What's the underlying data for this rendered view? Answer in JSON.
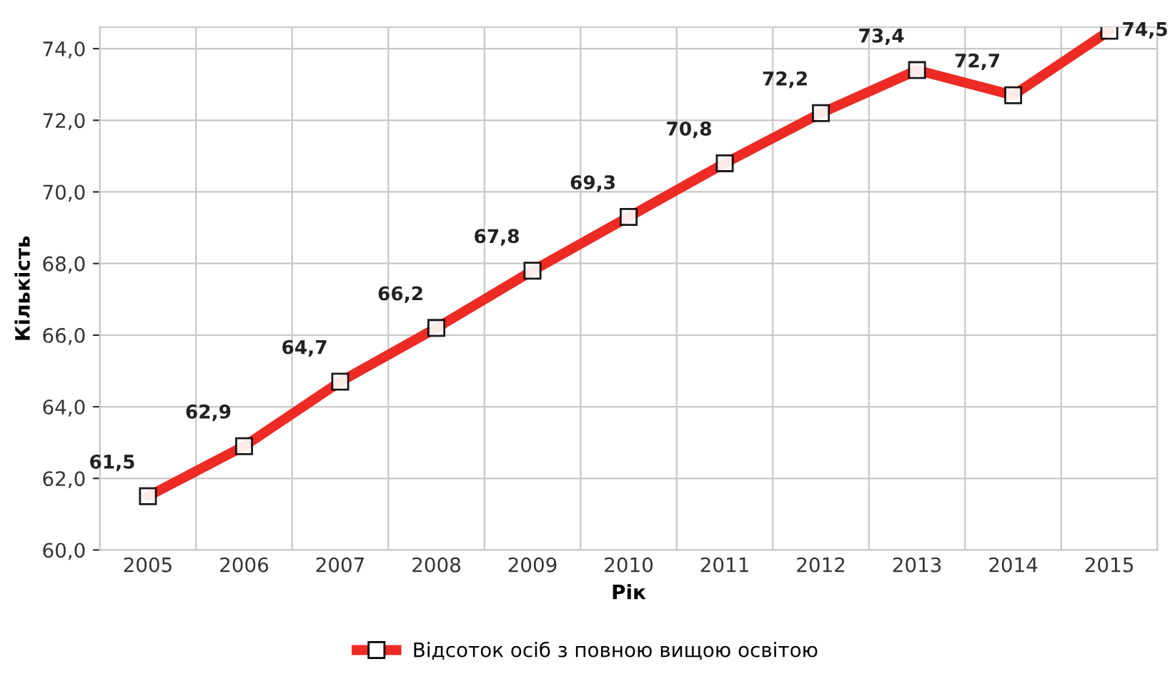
{
  "chart_data": {
    "type": "line",
    "xlabel": "Рік",
    "ylabel": "Кількість",
    "categories": [
      "2005",
      "2006",
      "2007",
      "2008",
      "2009",
      "2010",
      "2011",
      "2012",
      "2013",
      "2014",
      "2015"
    ],
    "series": [
      {
        "name": "Відсоток осіб з повною вищою освітою",
        "color": "#ee2a24",
        "values": [
          61.5,
          62.9,
          64.7,
          66.2,
          67.8,
          69.3,
          70.8,
          72.2,
          73.4,
          72.7,
          74.5
        ],
        "value_labels": [
          "61,5",
          "62,9",
          "64,7",
          "66,2",
          "67,8",
          "69,3",
          "70,8",
          "72,2",
          "73,4",
          "72,7",
          "74,5"
        ]
      }
    ],
    "ylim": [
      60,
      74.6
    ],
    "yticks": [
      {
        "value": 60,
        "label": "60,0"
      },
      {
        "value": 62,
        "label": "62,0"
      },
      {
        "value": 64,
        "label": "64,0"
      },
      {
        "value": 66,
        "label": "66,0"
      },
      {
        "value": 68,
        "label": "68,0"
      },
      {
        "value": 70,
        "label": "70,0"
      },
      {
        "value": 72,
        "label": "72,0"
      },
      {
        "value": 74,
        "label": "74,0"
      }
    ],
    "grid": true,
    "legend": "bottom",
    "marker": "square",
    "line_style": "solid"
  }
}
